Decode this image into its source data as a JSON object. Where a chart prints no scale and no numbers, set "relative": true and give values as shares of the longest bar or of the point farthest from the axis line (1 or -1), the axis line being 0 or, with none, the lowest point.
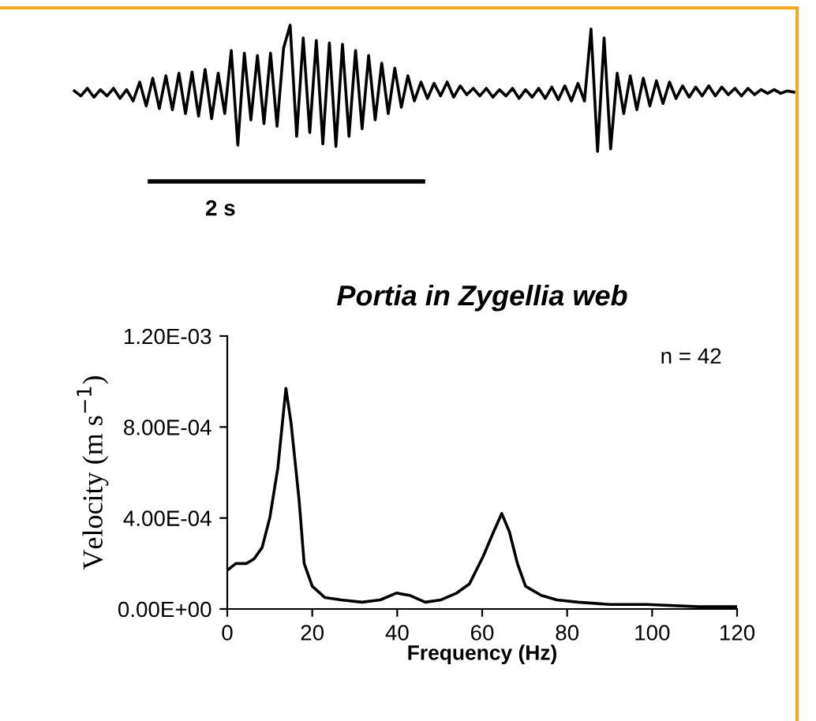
{
  "chart_data": [
    {
      "type": "line",
      "relative": true,
      "color": "#000000",
      "annotations": [
        "2 s"
      ],
      "categories": [
        null,
        null,
        null,
        null,
        null,
        null,
        null,
        null,
        null,
        null,
        null,
        null,
        null,
        null,
        null,
        null,
        null,
        null,
        null,
        null,
        null,
        null,
        null,
        null,
        null,
        null,
        null,
        null,
        null,
        null,
        null,
        null,
        null,
        null,
        null,
        null,
        null,
        null,
        null,
        null,
        null,
        null,
        null,
        null,
        null,
        null,
        null,
        null,
        null,
        null,
        null,
        null,
        null,
        null,
        null,
        null,
        null,
        null,
        null,
        null,
        null,
        null,
        null,
        null,
        null,
        null,
        null,
        null,
        null,
        null,
        null,
        null,
        null,
        null,
        null,
        null,
        null,
        null,
        null,
        null,
        null,
        null,
        null,
        null,
        null,
        null,
        null,
        null,
        null,
        null,
        null,
        null,
        null,
        null,
        null,
        null,
        null,
        null,
        null,
        null,
        null,
        null,
        null,
        null,
        null,
        null,
        null,
        null,
        null,
        null,
        null
      ],
      "values": [
        0.48,
        0.44,
        0.5,
        0.43,
        0.49,
        0.44,
        0.5,
        0.42,
        0.49,
        0.4,
        0.55,
        0.36,
        0.58,
        0.34,
        0.6,
        0.33,
        0.62,
        0.3,
        0.63,
        0.28,
        0.65,
        0.26,
        0.62,
        0.3,
        0.8,
        0.05,
        0.78,
        0.25,
        0.76,
        0.22,
        0.78,
        0.2,
        0.82,
        1.0,
        0.12,
        0.9,
        0.15,
        0.88,
        0.06,
        0.86,
        0.04,
        0.85,
        0.12,
        0.8,
        0.18,
        0.76,
        0.25,
        0.7,
        0.3,
        0.66,
        0.35,
        0.6,
        0.4,
        0.55,
        0.42,
        0.54,
        0.44,
        0.55,
        0.43,
        0.52,
        0.45,
        0.5,
        0.44,
        0.5,
        0.43,
        0.49,
        0.44,
        0.5,
        0.42,
        0.49,
        0.43,
        0.5,
        0.42,
        0.51,
        0.41,
        0.52,
        0.4,
        0.54,
        0.4,
        0.97,
        0.0,
        0.9,
        0.02,
        0.62,
        0.3,
        0.6,
        0.33,
        0.58,
        0.36,
        0.56,
        0.38,
        0.55,
        0.42,
        0.52,
        0.43,
        0.51,
        0.44,
        0.52,
        0.44,
        0.51,
        0.45,
        0.5,
        0.44,
        0.5,
        0.45,
        0.49,
        0.46,
        0.49,
        0.46,
        0.48,
        0.47
      ]
    },
    {
      "type": "line",
      "title": "Portia in Zygellia web",
      "xlabel": "Frequency (Hz)",
      "ylabel": "Velocity (m s$^{−1}$)",
      "color": "#000000",
      "annotations": [
        "n = 42"
      ],
      "x": [
        0,
        2,
        4.5,
        6.3,
        8.2,
        10,
        11.9,
        13.8,
        15,
        16.9,
        18.1,
        20,
        23,
        26.8,
        31.7,
        36,
        39.8,
        42.9,
        46.6,
        50.3,
        54,
        57,
        60.2,
        62.7,
        64.6,
        66.4,
        68.3,
        70.2,
        73.9,
        77.6,
        82.6,
        90,
        98.7,
        111,
        119.8
      ],
      "values": [
        0.00017,
        0.0002,
        0.0002,
        0.00022,
        0.00027,
        0.0004,
        0.00062,
        0.00097,
        0.00082,
        0.00048,
        0.0002,
        0.0001,
        5e-05,
        4e-05,
        3e-05,
        4e-05,
        7e-05,
        6e-05,
        3e-05,
        4e-05,
        7e-05,
        0.00011,
        0.00023,
        0.00034,
        0.00042,
        0.00034,
        0.0002,
        0.0001,
        6e-05,
        4e-05,
        3e-05,
        2e-05,
        2e-05,
        1e-05,
        1e-05
      ],
      "xlim": [
        0,
        120
      ],
      "xticks": [
        0,
        20,
        40,
        60,
        80,
        100,
        120
      ],
      "ylim": [
        0,
        0.0012
      ],
      "yticks": [
        {
          "value": 0,
          "label": "0.00E+00"
        },
        {
          "value": 0.0004,
          "label": "4.00E-04"
        },
        {
          "value": 0.0008,
          "label": "8.00E-04"
        },
        {
          "value": 0.0012,
          "label": "1.20E-03"
        }
      ]
    }
  ]
}
